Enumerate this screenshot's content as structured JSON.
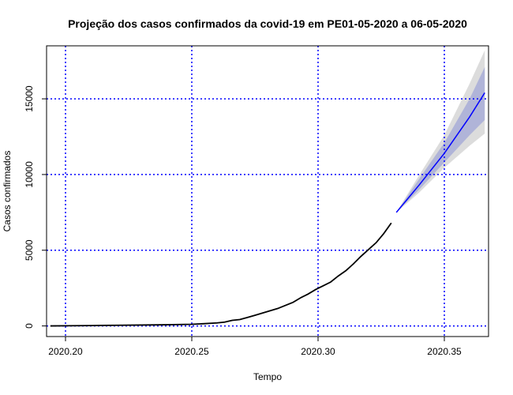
{
  "chart_data": {
    "type": "line",
    "title": "Projeção dos casos confirmados da covid-19 em PE01-05-2020 a 06-05-2020",
    "xlabel": "Tempo",
    "ylabel": "Casos confirmados",
    "xlim": [
      2020.1925,
      2020.3675
    ],
    "ylim": [
      -700,
      18500
    ],
    "x_ticks": [
      2020.2,
      2020.25,
      2020.3,
      2020.35
    ],
    "x_tick_labels": [
      "2020.20",
      "2020.25",
      "2020.30",
      "2020.35"
    ],
    "y_ticks": [
      0,
      5000,
      10000,
      15000
    ],
    "y_tick_labels": [
      "0",
      "5000",
      "10000",
      "15000"
    ],
    "grid": true,
    "grid_color": "#0000ff",
    "observed": {
      "color": "#000000",
      "x": [
        2020.194,
        2020.2,
        2020.21,
        2020.22,
        2020.23,
        2020.24,
        2020.25,
        2020.255,
        2020.26,
        2020.263,
        2020.266,
        2020.269,
        2020.272,
        2020.275,
        2020.278,
        2020.281,
        2020.284,
        2020.287,
        2020.29,
        2020.293,
        2020.296,
        2020.299,
        2020.302,
        2020.305,
        2020.308,
        2020.311,
        2020.314,
        2020.317,
        2020.32,
        2020.323,
        2020.326,
        2020.329
      ],
      "y": [
        0,
        10,
        25,
        45,
        60,
        80,
        110,
        150,
        200,
        250,
        370,
        420,
        560,
        700,
        850,
        1000,
        1150,
        1350,
        1550,
        1850,
        2100,
        2400,
        2650,
        2900,
        3300,
        3650,
        4100,
        4600,
        5050,
        5500,
        6100,
        6800
      ]
    },
    "forecast": {
      "color": "#0000ff",
      "ci80_color": "#b0b4d8",
      "ci95_color": "#dcdcdc",
      "x": [
        2020.331,
        2020.34,
        2020.35,
        2020.36,
        2020.366
      ],
      "mean": [
        7500,
        9300,
        11400,
        13800,
        15400
      ],
      "lo80": [
        7500,
        9000,
        10800,
        12600,
        13600
      ],
      "hi80": [
        7500,
        9700,
        12100,
        15000,
        17100
      ],
      "lo95": [
        7500,
        8800,
        10450,
        11900,
        12700
      ],
      "hi95": [
        7500,
        9950,
        12600,
        16000,
        18200
      ]
    }
  }
}
